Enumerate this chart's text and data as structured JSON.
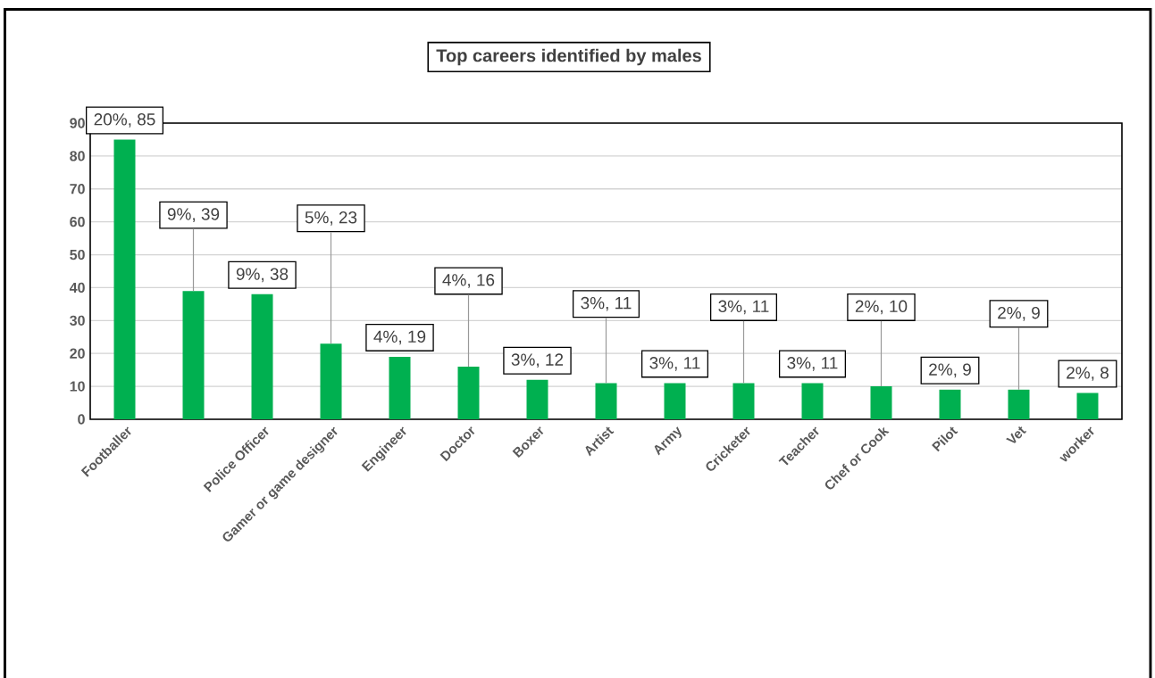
{
  "chart_data": {
    "type": "bar",
    "title": "Top careers identified by males",
    "categories": [
      "Footballer",
      null,
      "Police Officer",
      "Gamer or game designer",
      "Engineer",
      "Doctor",
      "Boxer",
      "Artist",
      "Army",
      "Cricketer",
      "Teacher",
      "Chef or Cook",
      "Pilot",
      "Vet",
      "worker"
    ],
    "values": [
      85,
      39,
      38,
      23,
      19,
      16,
      12,
      11,
      11,
      11,
      11,
      10,
      9,
      9,
      8
    ],
    "value_labels": [
      "20%, 85",
      "9%, 39",
      "9%, 38",
      "5%, 23",
      "4%, 19",
      "4%, 16",
      "3%, 12",
      "3%, 11",
      "3%, 11",
      "3%, 11",
      "3%, 11",
      "2%, 10",
      "2%, 9",
      "2%, 9",
      "2%, 8"
    ],
    "color": "#00b050",
    "ylim": [
      0,
      90
    ],
    "yticks": [
      0,
      10,
      20,
      30,
      40,
      50,
      60,
      70,
      80,
      90
    ],
    "grid": "y"
  }
}
